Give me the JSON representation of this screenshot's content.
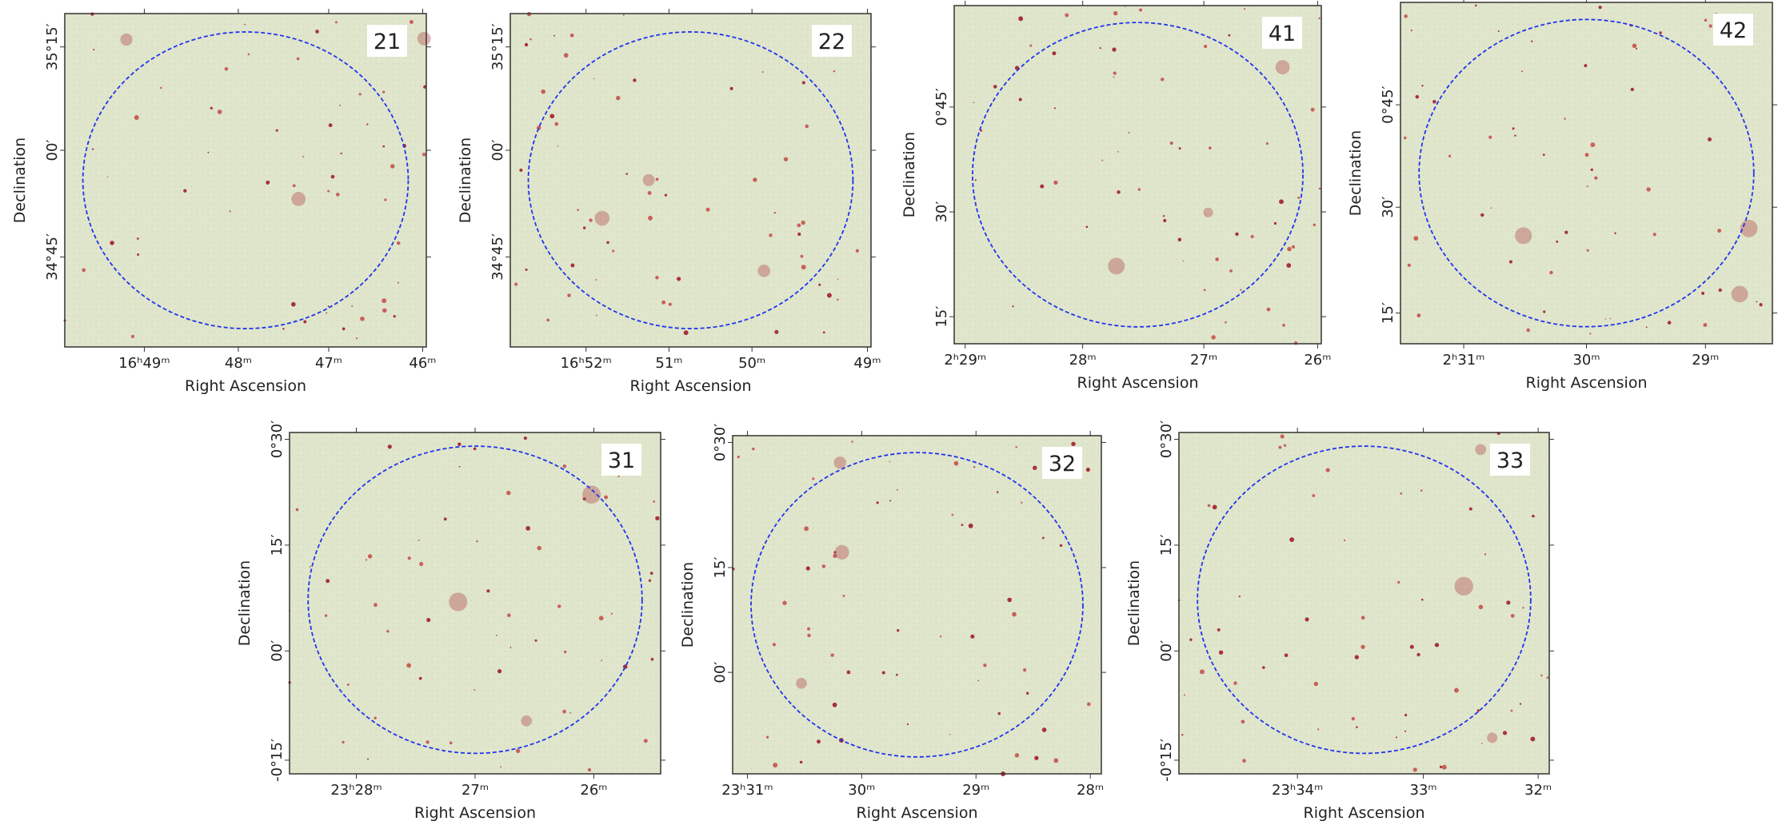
{
  "axis_labels": {
    "x": "Right Ascension",
    "y": "Declination"
  },
  "panels": [
    {
      "label": "21",
      "xticks": [
        "16ʰ49ᵐ",
        "48ᵐ",
        "47ᵐ",
        "46ᵐ"
      ],
      "yticks": [
        "35°15′",
        "00′",
        "34°45′"
      ]
    },
    {
      "label": "22",
      "xticks": [
        "16ʰ52ᵐ",
        "51ᵐ",
        "50ᵐ",
        "49ᵐ"
      ],
      "yticks": [
        "35°15′",
        "00′",
        "34°45′"
      ]
    },
    {
      "label": "41",
      "xticks": [
        "2ʰ29ᵐ",
        "28ᵐ",
        "27ᵐ",
        "26ᵐ"
      ],
      "yticks": [
        "0°45′",
        "30′",
        "15′"
      ]
    },
    {
      "label": "42",
      "xticks": [
        "2ʰ31ᵐ",
        "30ᵐ",
        "29ᵐ"
      ],
      "yticks": [
        "0°45′",
        "30′",
        "15′"
      ]
    },
    {
      "label": "31",
      "xticks": [
        "23ʰ28ᵐ",
        "27ᵐ",
        "26ᵐ"
      ],
      "yticks": [
        "0°30′",
        "15′",
        "00′",
        "-0°15′"
      ]
    },
    {
      "label": "32",
      "xticks": [
        "23ʰ31ᵐ",
        "30ᵐ",
        "29ᵐ",
        "28ᵐ"
      ],
      "yticks": [
        "0°30′",
        "15′",
        "00′"
      ]
    },
    {
      "label": "33",
      "xticks": [
        "23ʰ34ᵐ",
        "33ᵐ",
        "32ᵐ"
      ],
      "yticks": [
        "0°30′",
        "15′",
        "00′",
        "-0°15′"
      ]
    }
  ]
}
